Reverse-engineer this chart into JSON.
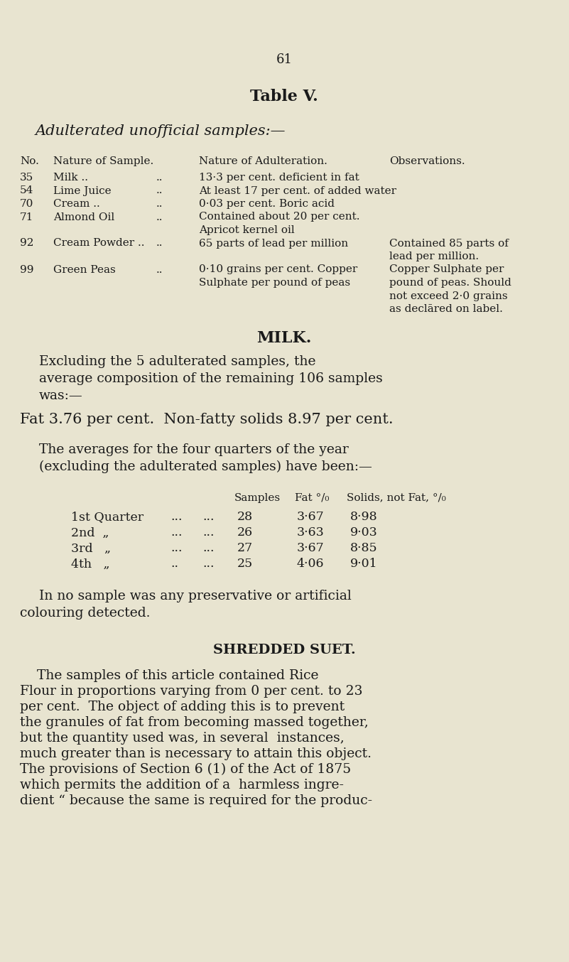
{
  "bg_color": "#e8e4d0",
  "text_color": "#1a1a1a",
  "page_number": "61",
  "table_title": "Table V.",
  "table_subtitle": "Adulterated unofficial samples:—",
  "milk_heading": "MILK.",
  "milk_para1_lines": [
    "Excluding the 5 adulterated samples, the",
    "average composition of the remaining 106 samples",
    "was:—"
  ],
  "milk_fat_line": "Fat 3.76 per cent.  Non-fatty solids 8.97 per cent.",
  "milk_para2_lines": [
    "The averages for the four quarters of the year",
    "(excluding the adulterated samples) have been:—"
  ],
  "quarters_hdr": [
    "Samples",
    "Fat °/₀",
    "Solids, not Fat, °/₀"
  ],
  "quarters_rows": [
    [
      "1st Quarter",
      "...",
      "...",
      "28",
      "3·67",
      "8·98"
    ],
    [
      "2nd  „",
      "...",
      "...",
      "26",
      "3·63",
      "9·03"
    ],
    [
      "3rd   „",
      "...",
      "...",
      "27",
      "3·67",
      "8·85"
    ],
    [
      "4th   „",
      "..",
      "...",
      "25",
      "4·06",
      "9·01"
    ]
  ],
  "no_preservative_lines": [
    "In no sample was any preservative or artificial",
    "colouring detected."
  ],
  "suet_heading": "SHREDDED SUET.",
  "suet_lines": [
    "    The samples of this article contained Rice",
    "Flour in proportions varying from 0 per cent. to 23",
    "per cent.  The object of adding this is to prevent",
    "the granules of fat from becoming massed together,",
    "but the quantity used was, in several  instances,",
    "much greater than is necessary to attain this object.",
    "The provisions of Section 6 (1) of the Act of 1875",
    "which permits the addition of a  harmless ingre-",
    "dient “ because the same is required for the produc-"
  ]
}
